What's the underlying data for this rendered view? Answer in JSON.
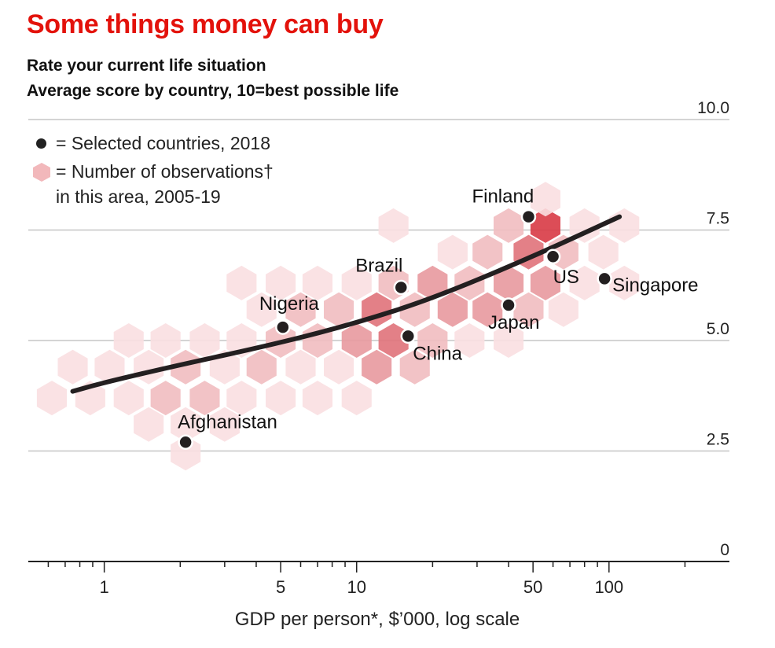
{
  "title": "Some things money can buy",
  "subtitle": {
    "line1": "Rate your current life situation",
    "line2": "Average score by country, 10=best possible life"
  },
  "legend": {
    "dot_label": "= Selected countries, 2018",
    "hex_label": "= Number of observations†\nin this area, 2005-19",
    "dot_color": "#231f20",
    "hex_color": "#f2b8bb"
  },
  "colors": {
    "accent": "#e3120b",
    "trend_line": "#231f20",
    "hex_scale": [
      "#f9dfe1",
      "#f1bcc0",
      "#e8999e",
      "#e0727a",
      "#d83a45"
    ]
  },
  "chart_data": {
    "type": "scatter",
    "title": "Some things money can buy",
    "xlabel": "GDP per person*, $’000, log scale",
    "ylabel": "",
    "x_scale": "log",
    "xlim": [
      0.5,
      300
    ],
    "ylim": [
      0,
      10
    ],
    "x_ticks": [
      1,
      5,
      10,
      50,
      100
    ],
    "x_tick_labels": [
      "1",
      "5",
      "10",
      "50",
      "100"
    ],
    "y_ticks": [
      0,
      2.5,
      5.0,
      7.5,
      10.0
    ],
    "y_tick_labels": [
      "0",
      "2.5",
      "5.0",
      "7.5",
      "10.0"
    ],
    "grid": "horizontal",
    "series": [
      {
        "name": "Selected countries, 2018",
        "points": [
          {
            "label": "Afghanistan",
            "x": 2.1,
            "y": 2.7
          },
          {
            "label": "Nigeria",
            "x": 5.1,
            "y": 5.3
          },
          {
            "label": "Brazil",
            "x": 15,
            "y": 6.2
          },
          {
            "label": "China",
            "x": 16,
            "y": 5.1
          },
          {
            "label": "Japan",
            "x": 40,
            "y": 5.8
          },
          {
            "label": "Finland",
            "x": 48,
            "y": 7.8
          },
          {
            "label": "US",
            "x": 60,
            "y": 6.9
          },
          {
            "label": "Singapore",
            "x": 96,
            "y": 6.4
          }
        ]
      }
    ],
    "trend_line": [
      {
        "x": 0.75,
        "y": 3.85
      },
      {
        "x": 1,
        "y": 4.05
      },
      {
        "x": 2,
        "y": 4.45
      },
      {
        "x": 5,
        "y": 4.95
      },
      {
        "x": 10,
        "y": 5.4
      },
      {
        "x": 20,
        "y": 5.95
      },
      {
        "x": 50,
        "y": 6.9
      },
      {
        "x": 110,
        "y": 7.8
      }
    ],
    "hexbins": [
      {
        "x": 0.62,
        "y": 3.7,
        "level": 1
      },
      {
        "x": 0.75,
        "y": 4.4,
        "level": 1
      },
      {
        "x": 0.88,
        "y": 3.7,
        "level": 1
      },
      {
        "x": 1.05,
        "y": 4.4,
        "level": 1
      },
      {
        "x": 1.25,
        "y": 3.7,
        "level": 1
      },
      {
        "x": 1.25,
        "y": 5.0,
        "level": 1
      },
      {
        "x": 1.5,
        "y": 4.4,
        "level": 1
      },
      {
        "x": 1.5,
        "y": 3.1,
        "level": 1
      },
      {
        "x": 1.75,
        "y": 3.7,
        "level": 2
      },
      {
        "x": 1.75,
        "y": 5.0,
        "level": 1
      },
      {
        "x": 2.1,
        "y": 4.4,
        "level": 2
      },
      {
        "x": 2.1,
        "y": 3.1,
        "level": 1
      },
      {
        "x": 2.1,
        "y": 2.45,
        "level": 1
      },
      {
        "x": 2.5,
        "y": 3.7,
        "level": 2
      },
      {
        "x": 2.5,
        "y": 5.0,
        "level": 1
      },
      {
        "x": 3.0,
        "y": 4.4,
        "level": 1
      },
      {
        "x": 3.0,
        "y": 3.1,
        "level": 1
      },
      {
        "x": 3.5,
        "y": 3.7,
        "level": 1
      },
      {
        "x": 3.5,
        "y": 5.0,
        "level": 1
      },
      {
        "x": 3.5,
        "y": 6.3,
        "level": 1
      },
      {
        "x": 4.2,
        "y": 4.4,
        "level": 2
      },
      {
        "x": 4.2,
        "y": 5.7,
        "level": 1
      },
      {
        "x": 5.0,
        "y": 3.7,
        "level": 1
      },
      {
        "x": 5.0,
        "y": 5.0,
        "level": 2
      },
      {
        "x": 5.0,
        "y": 6.3,
        "level": 1
      },
      {
        "x": 6.0,
        "y": 4.4,
        "level": 1
      },
      {
        "x": 6.0,
        "y": 5.7,
        "level": 2
      },
      {
        "x": 7.0,
        "y": 5.0,
        "level": 2
      },
      {
        "x": 7.0,
        "y": 3.7,
        "level": 1
      },
      {
        "x": 7.0,
        "y": 6.3,
        "level": 1
      },
      {
        "x": 8.5,
        "y": 4.4,
        "level": 1
      },
      {
        "x": 8.5,
        "y": 5.7,
        "level": 2
      },
      {
        "x": 10,
        "y": 5.0,
        "level": 3
      },
      {
        "x": 10,
        "y": 3.7,
        "level": 1
      },
      {
        "x": 10,
        "y": 6.3,
        "level": 1
      },
      {
        "x": 12,
        "y": 5.7,
        "level": 4
      },
      {
        "x": 12,
        "y": 4.4,
        "level": 3
      },
      {
        "x": 14,
        "y": 5.0,
        "level": 4
      },
      {
        "x": 14,
        "y": 6.3,
        "level": 2
      },
      {
        "x": 14,
        "y": 7.6,
        "level": 1
      },
      {
        "x": 17,
        "y": 5.7,
        "level": 2
      },
      {
        "x": 17,
        "y": 4.4,
        "level": 2
      },
      {
        "x": 20,
        "y": 5.0,
        "level": 2
      },
      {
        "x": 20,
        "y": 6.3,
        "level": 3
      },
      {
        "x": 24,
        "y": 5.7,
        "level": 3
      },
      {
        "x": 24,
        "y": 7.0,
        "level": 1
      },
      {
        "x": 28,
        "y": 5.0,
        "level": 1
      },
      {
        "x": 28,
        "y": 6.3,
        "level": 2
      },
      {
        "x": 33,
        "y": 5.7,
        "level": 3
      },
      {
        "x": 33,
        "y": 7.0,
        "level": 2
      },
      {
        "x": 40,
        "y": 6.3,
        "level": 3
      },
      {
        "x": 40,
        "y": 7.6,
        "level": 2
      },
      {
        "x": 40,
        "y": 5.0,
        "level": 1
      },
      {
        "x": 48,
        "y": 7.0,
        "level": 4
      },
      {
        "x": 48,
        "y": 5.7,
        "level": 2
      },
      {
        "x": 56,
        "y": 7.6,
        "level": 5
      },
      {
        "x": 56,
        "y": 6.3,
        "level": 3
      },
      {
        "x": 56,
        "y": 8.2,
        "level": 1
      },
      {
        "x": 66,
        "y": 7.0,
        "level": 2
      },
      {
        "x": 66,
        "y": 5.7,
        "level": 1
      },
      {
        "x": 80,
        "y": 6.3,
        "level": 1
      },
      {
        "x": 80,
        "y": 7.6,
        "level": 1
      },
      {
        "x": 95,
        "y": 7.0,
        "level": 1
      },
      {
        "x": 115,
        "y": 7.6,
        "level": 1
      },
      {
        "x": 115,
        "y": 6.3,
        "level": 1
      }
    ]
  }
}
